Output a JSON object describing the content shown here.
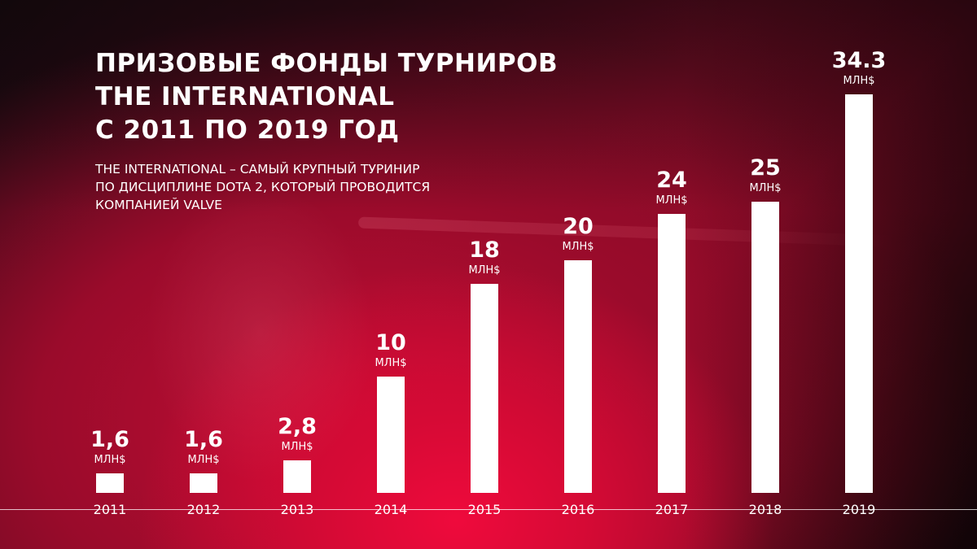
{
  "title": {
    "lines": [
      "ПРИЗОВЫЕ ФОНДЫ ТУРНИРОВ",
      "THE INTERNATIONAL",
      "С 2011 ПО 2019 ГОД"
    ]
  },
  "subtitle": {
    "lines": [
      "THE INTERNATIONAL – САМЫЙ КРУПНЫЙ ТУРИНИР",
      "ПО ДИСЦИПЛИНЕ DOTA 2, КОТОРЫЙ ПРОВОДИТСЯ",
      "КОМПАНИЕЙ VALVE"
    ]
  },
  "colors": {
    "bar": "#ffffff",
    "background_center": "#e8083a",
    "background_edge": "#140709",
    "text": "#ffffff"
  },
  "unit_label": "МЛН$",
  "bars": [
    {
      "year": "2011",
      "label": "1,6",
      "unit": "МЛН$",
      "value": 1.6
    },
    {
      "year": "2012",
      "label": "1,6",
      "unit": "МЛН$",
      "value": 1.6
    },
    {
      "year": "2013",
      "label": "2,8",
      "unit": "МЛН$",
      "value": 2.8
    },
    {
      "year": "2014",
      "label": "10",
      "unit": "МЛН$",
      "value": 10
    },
    {
      "year": "2015",
      "label": "18",
      "unit": "МЛН$",
      "value": 18
    },
    {
      "year": "2016",
      "label": "20",
      "unit": "МЛН$",
      "value": 20
    },
    {
      "year": "2017",
      "label": "24",
      "unit": "МЛН$",
      "value": 24
    },
    {
      "year": "2018",
      "label": "25",
      "unit": "МЛН$",
      "value": 25
    },
    {
      "year": "2019",
      "label": "34.3",
      "unit": "МЛН$",
      "value": 34.3
    }
  ],
  "chart_data": {
    "type": "bar",
    "title": "Призовые фонды турниров The International с 2011 по 2019 год",
    "subtitle": "The International – самый крупный туринир по дисциплине Dota 2, который проводится компанией Valve",
    "categories": [
      "2011",
      "2012",
      "2013",
      "2014",
      "2015",
      "2016",
      "2017",
      "2018",
      "2019"
    ],
    "values": [
      1.6,
      1.6,
      2.8,
      10,
      18,
      20,
      24,
      25,
      34.3
    ],
    "data_labels": [
      "1,6",
      "1,6",
      "2,8",
      "10",
      "18",
      "20",
      "24",
      "25",
      "34.3"
    ],
    "unit": "млн$",
    "xlabel": "",
    "ylabel": "",
    "grid": false,
    "legend": null
  }
}
